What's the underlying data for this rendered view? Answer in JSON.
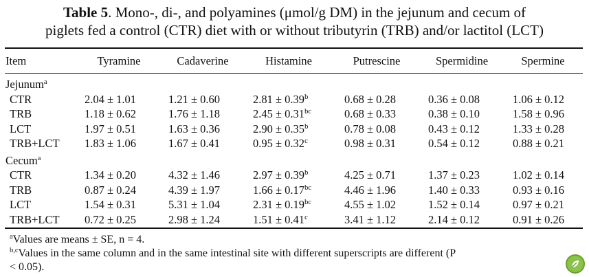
{
  "caption": {
    "label": "Table 5",
    "text_line1": ". Mono-, di-, and polyamines (μmol/g DM) in the jejunum and cecum of",
    "text_line2": "piglets fed a control (CTR) diet with or without tributyrin (TRB) and/or lactitol (LCT)"
  },
  "table": {
    "headers": [
      "Item",
      "Tyramine",
      "Cadaverine",
      "Histamine",
      "Putrescine",
      "Spermidine",
      "Spermine"
    ],
    "sections": [
      {
        "title": "Jejunum",
        "sup": "a",
        "rows": [
          {
            "item": "CTR",
            "values": [
              "2.04 ± 1.01",
              "1.21 ± 0.60",
              "2.81 ± 0.39",
              "0.68 ± 0.28",
              "0.36 ± 0.08",
              "1.06 ± 0.12"
            ],
            "hist_sup": "b"
          },
          {
            "item": "TRB",
            "values": [
              "1.18 ± 0.62",
              "1.76 ± 1.18",
              "2.45 ± 0.31",
              "0.68 ± 0.33",
              "0.38 ± 0.10",
              "1.58 ± 0.96"
            ],
            "hist_sup": "bc"
          },
          {
            "item": "LCT",
            "values": [
              "1.97 ± 0.51",
              "1.63 ± 0.36",
              "2.90 ± 0.35",
              "0.78 ± 0.08",
              "0.43 ± 0.12",
              "1.33 ± 0.28"
            ],
            "hist_sup": "b"
          },
          {
            "item": "TRB+LCT",
            "values": [
              "1.83 ± 1.06",
              "1.67 ± 0.41",
              "0.95 ± 0.32",
              "0.98 ± 0.31",
              "0.54 ± 0.12",
              "0.88 ± 0.21"
            ],
            "hist_sup": "c"
          }
        ]
      },
      {
        "title": "Cecum",
        "sup": "a",
        "rows": [
          {
            "item": "CTR",
            "values": [
              "1.34 ± 0.20",
              "4.32 ± 1.46",
              "2.97 ± 0.39",
              "4.25 ± 0.71",
              "1.37 ± 0.23",
              "1.02 ± 0.14"
            ],
            "hist_sup": "b"
          },
          {
            "item": "TRB",
            "values": [
              "0.87 ± 0.24",
              "4.39 ± 1.97",
              "1.66 ± 0.17",
              "4.46 ± 1.96",
              "1.40 ± 0.33",
              "0.93 ± 0.16"
            ],
            "hist_sup": "bc"
          },
          {
            "item": "LCT",
            "values": [
              "1.54 ± 0.31",
              "5.31 ± 1.04",
              "2.31 ± 0.19",
              "4.55 ± 1.02",
              "1.52 ± 0.14",
              "0.97 ± 0.21"
            ],
            "hist_sup": "bc"
          },
          {
            "item": "TRB+LCT",
            "values": [
              "0.72 ± 0.25",
              "2.98 ± 1.24",
              "1.51 ± 0.41",
              "3.41 ± 1.12",
              "2.14 ± 0.12",
              "0.91 ± 0.26"
            ],
            "hist_sup": "c"
          }
        ]
      }
    ]
  },
  "footnotes": {
    "a_sup": "a",
    "a_text": "Values are means ± SE, n = 4.",
    "bc_sup": "b,c",
    "bc_text_line1": "Values in the same column and in the same intestinal site with different superscripts are different (P",
    "bc_text_line2": "< 0.05)."
  },
  "badge": {
    "icon": "leaf-icon",
    "color": "#8bc34a"
  }
}
